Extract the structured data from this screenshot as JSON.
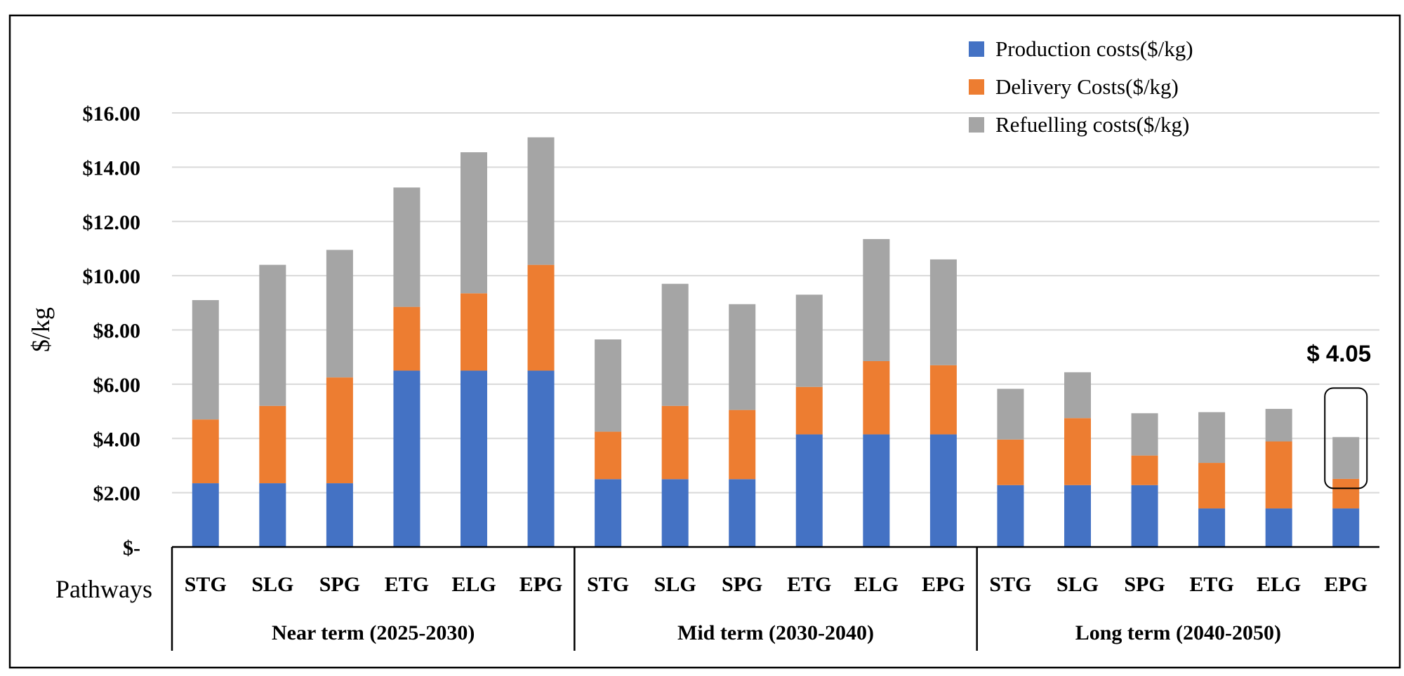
{
  "chart_data": {
    "type": "bar",
    "stacked": true,
    "ylabel": "$/kg",
    "xlabel": "Pathways",
    "ylim": [
      0,
      16
    ],
    "yticks": [
      0,
      2,
      4,
      6,
      8,
      10,
      12,
      14,
      16
    ],
    "ytick_labels": [
      "$-",
      "$2.00",
      "$4.00",
      "$6.00",
      "$8.00",
      "$10.00",
      "$12.00",
      "$14.00",
      "$16.00"
    ],
    "grid": true,
    "legend_position": "top-right",
    "groups": [
      {
        "label": "Near term (2025-2030)",
        "categories": [
          "STG",
          "SLG",
          "SPG",
          "ETG",
          "ELG",
          "EPG"
        ]
      },
      {
        "label": "Mid term (2030-2040)",
        "categories": [
          "STG",
          "SLG",
          "SPG",
          "ETG",
          "ELG",
          "EPG"
        ]
      },
      {
        "label": "Long term     (2040-2050)",
        "categories": [
          "STG",
          "SLG",
          "SPG",
          "ETG",
          "ELG",
          "EPG"
        ]
      }
    ],
    "series": [
      {
        "name": "Production costs($/kg)",
        "color": "#4472c4",
        "values": [
          2.35,
          2.35,
          2.35,
          6.5,
          6.5,
          6.5,
          2.5,
          2.5,
          2.5,
          4.15,
          4.15,
          4.15,
          2.28,
          2.28,
          2.28,
          1.42,
          1.42,
          1.42
        ]
      },
      {
        "name": "Delivery Costs($/kg)",
        "color": "#ed7d31",
        "values": [
          2.35,
          2.85,
          3.9,
          2.35,
          2.85,
          3.9,
          1.75,
          2.7,
          2.55,
          1.75,
          2.7,
          2.55,
          1.68,
          2.47,
          1.09,
          1.68,
          2.47,
          1.09
        ]
      },
      {
        "name": "Refuelling  costs($/kg)",
        "color": "#a5a5a5",
        "values": [
          4.4,
          5.2,
          4.7,
          4.4,
          5.2,
          4.7,
          3.4,
          4.5,
          3.9,
          3.4,
          4.5,
          3.9,
          1.87,
          1.69,
          1.56,
          1.87,
          1.2,
          1.54
        ]
      }
    ],
    "annotation": {
      "text": "$ 4.05",
      "target_index": 17
    }
  }
}
